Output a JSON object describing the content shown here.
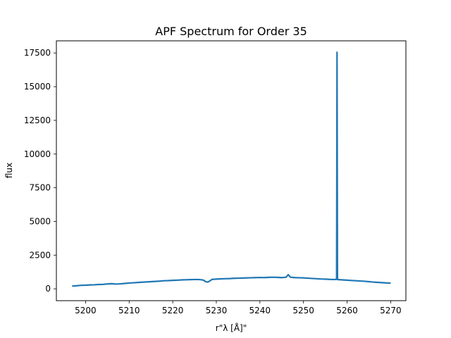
{
  "chart_data": {
    "type": "line",
    "title": "APF Spectrum for Order 35",
    "xlabel": "r\"λ [Å]\"",
    "ylabel": "flux",
    "xlim": [
      5193.3,
      5273.5
    ],
    "ylim": [
      -880,
      18400
    ],
    "x_ticks": [
      5200,
      5210,
      5220,
      5230,
      5240,
      5250,
      5260,
      5270
    ],
    "y_ticks": [
      0,
      2500,
      5000,
      7500,
      10000,
      12500,
      15000,
      17500
    ],
    "grid": false,
    "line_color": "#1f77b4",
    "series": [
      {
        "x": [
          5196.9,
          5198,
          5199,
          5200,
          5201,
          5202,
          5203,
          5204,
          5205,
          5206,
          5207,
          5208,
          5209,
          5210,
          5211,
          5212,
          5213,
          5214,
          5215,
          5216,
          5217,
          5218,
          5219,
          5220,
          5221,
          5222,
          5223,
          5224,
          5225,
          5226,
          5227,
          5227.6,
          5228,
          5228.6,
          5229,
          5230,
          5231,
          5232,
          5233,
          5234,
          5235,
          5236,
          5237,
          5238,
          5239,
          5240,
          5241,
          5242,
          5243,
          5244,
          5245,
          5246,
          5246.5,
          5247,
          5248,
          5249,
          5250,
          5251,
          5252,
          5253,
          5254,
          5255,
          5256,
          5257,
          5257.6,
          5257.7,
          5257.8,
          5257.9,
          5258.0,
          5258.1,
          5259,
          5260,
          5261,
          5262,
          5263,
          5264,
          5265,
          5266,
          5267,
          5268,
          5269,
          5270
        ],
        "y": [
          200,
          230,
          260,
          270,
          290,
          300,
          320,
          330,
          360,
          380,
          350,
          370,
          400,
          430,
          450,
          470,
          490,
          510,
          530,
          550,
          570,
          600,
          610,
          630,
          640,
          660,
          670,
          680,
          690,
          690,
          650,
          520,
          500,
          600,
          700,
          720,
          740,
          750,
          760,
          780,
          790,
          800,
          810,
          820,
          830,
          840,
          830,
          850,
          860,
          850,
          830,
          860,
          1050,
          860,
          830,
          820,
          810,
          790,
          770,
          750,
          730,
          720,
          700,
          690,
          700,
          17550,
          700,
          680,
          690,
          680,
          660,
          640,
          620,
          600,
          580,
          560,
          530,
          500,
          480,
          460,
          440,
          420
        ]
      }
    ]
  }
}
